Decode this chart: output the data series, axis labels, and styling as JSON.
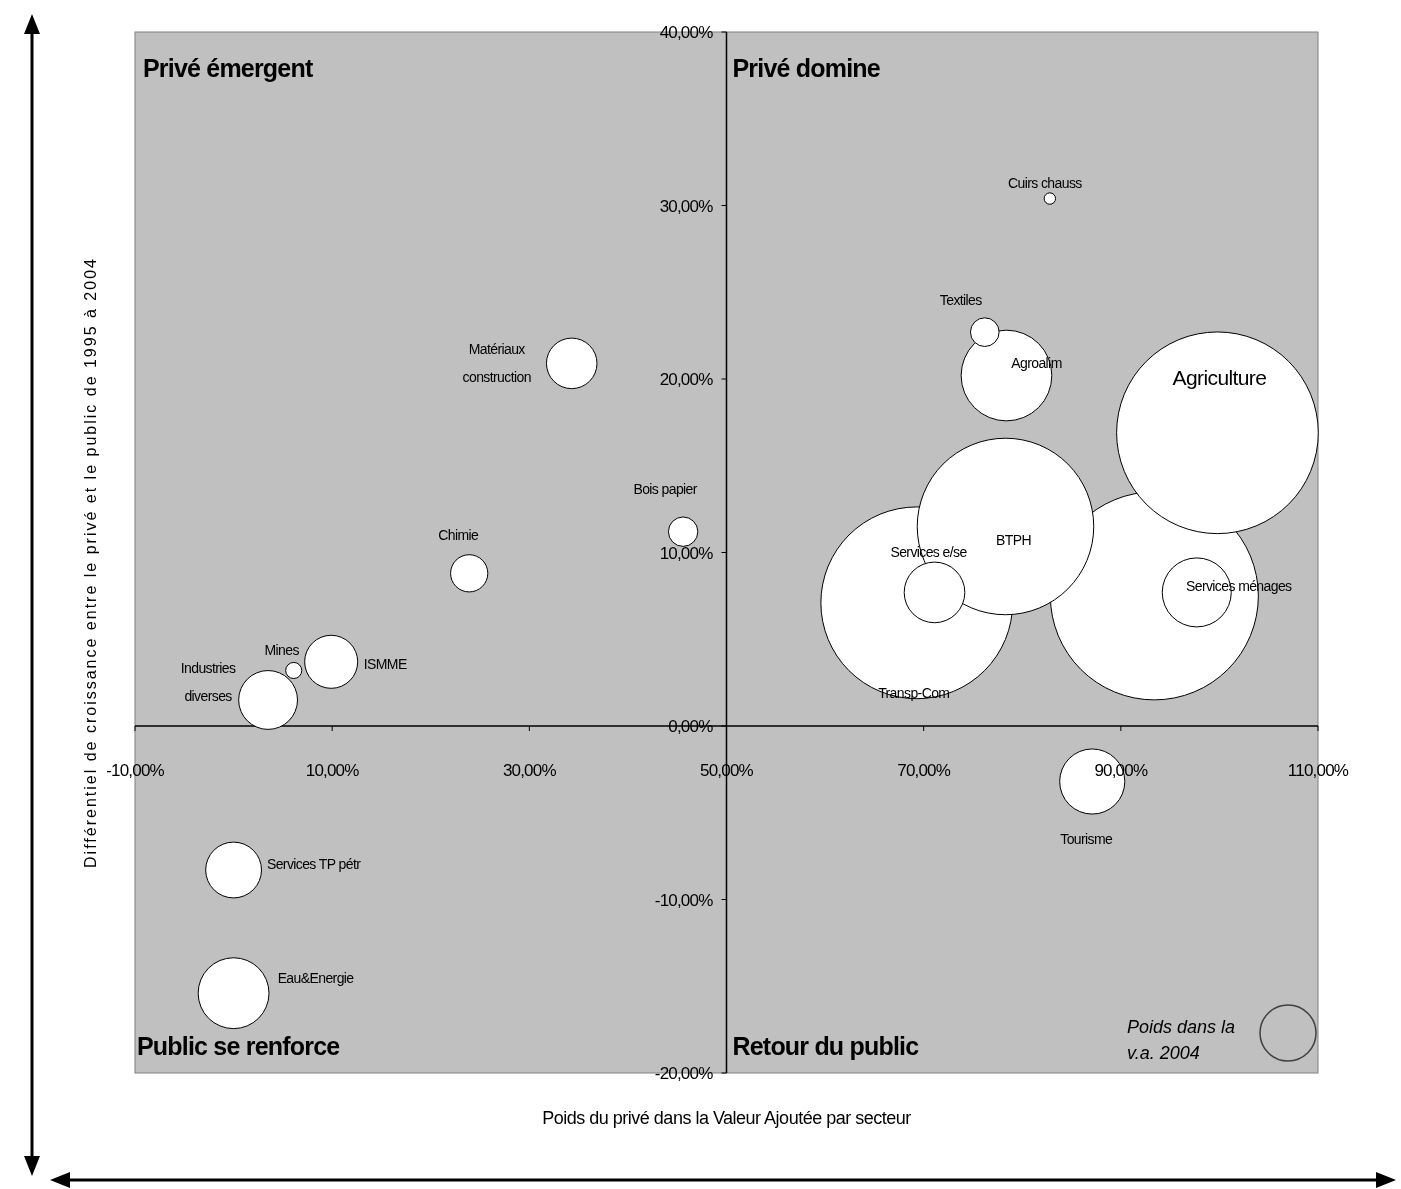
{
  "chart_data": {
    "type": "bubble",
    "xlabel": "Poids du privé dans la Valeur Ajoutée par secteur",
    "ylabel": "Différentiel de croissance entre le privé et le public de 1995 à 2004",
    "series": [
      {
        "name": "Cuirs chauss",
        "color": "#ffffff",
        "x": [
          82.8
        ],
        "values": [
          30.4
        ],
        "sizes": [
          0.003
        ]
      },
      {
        "name": "Textiles",
        "color": "#ffffff",
        "x": [
          76.2
        ],
        "values": [
          22.7
        ],
        "sizes": [
          0.019
        ]
      },
      {
        "name": "Agroalim",
        "color": "#ffffff",
        "x": [
          78.4
        ],
        "values": [
          20.2
        ],
        "sizes": [
          0.19
        ]
      },
      {
        "name": "Agriculture",
        "color": "#ffffff",
        "x": [
          99.8
        ],
        "values": [
          16.9
        ],
        "sizes": [
          0.94
        ]
      },
      {
        "name": "BTPH",
        "color": "#ffffff",
        "x": [
          78.3
        ],
        "values": [
          11.5
        ],
        "sizes": [
          0.72
        ]
      },
      {
        "name": "Transp-Com",
        "color": "#ffffff",
        "x": [
          69.3
        ],
        "values": [
          7.1
        ],
        "sizes": [
          0.85
        ]
      },
      {
        "name": "Services e/se",
        "color": "#ffffff",
        "x": [
          71.1
        ],
        "values": [
          7.7
        ],
        "sizes": [
          0.085
        ]
      },
      {
        "color": "#ffffff",
        "x": [
          93.4
        ],
        "values": [
          7.5
        ],
        "sizes": [
          1
        ]
      },
      {
        "name": "Services ménages",
        "color": "#ffffff",
        "x": [
          97.7
        ],
        "values": [
          7.7
        ],
        "sizes": [
          0.11
        ]
      },
      {
        "name": "Tourisme",
        "color": "#ffffff",
        "x": [
          87.1
        ],
        "values": [
          -3.2
        ],
        "sizes": [
          0.098
        ]
      },
      {
        "name": "Bois papier",
        "color": "#ffffff",
        "x": [
          45.6
        ],
        "values": [
          11.2
        ],
        "sizes": [
          0.02
        ]
      },
      {
        "name": "Matériaux\nconstruction",
        "color": "#ffffff",
        "x": [
          34.3
        ],
        "values": [
          20.9
        ],
        "sizes": [
          0.059
        ]
      },
      {
        "name": "Chimie",
        "color": "#ffffff",
        "x": [
          23.9
        ],
        "values": [
          8.8
        ],
        "sizes": [
          0.032
        ]
      },
      {
        "name": "Mines",
        "color": "#ffffff",
        "x": [
          6.1
        ],
        "values": [
          3.2
        ],
        "sizes": [
          0.006
        ]
      },
      {
        "name": "ISMME",
        "color": "#ffffff",
        "x": [
          9.9
        ],
        "values": [
          3.7
        ],
        "sizes": [
          0.065
        ]
      },
      {
        "name": "Industries\ndiverses",
        "color": "#ffffff",
        "x": [
          3.5
        ],
        "values": [
          1.5
        ],
        "sizes": [
          0.08
        ]
      },
      {
        "name": "Services TP pétr",
        "color": "#ffffff",
        "x": [
          0
        ],
        "values": [
          -8.3
        ],
        "sizes": [
          0.072
        ]
      },
      {
        "name": "Eau&Energie",
        "color": "#ffffff",
        "x": [
          0
        ],
        "values": [
          -15.4
        ],
        "sizes": [
          0.116
        ]
      }
    ],
    "xlim": [
      -10,
      110
    ],
    "ylim": [
      -20,
      40
    ],
    "xticks": [
      {
        "value": -10,
        "label": "-10,00%"
      },
      {
        "value": 10,
        "label": "10,00%"
      },
      {
        "value": 30,
        "label": "30,00%"
      },
      {
        "value": 50,
        "label": "50,00%"
      },
      {
        "value": 70,
        "label": "70,00%"
      },
      {
        "value": 90,
        "label": "90,00%"
      },
      {
        "value": 110,
        "label": "110,00%"
      }
    ],
    "yticks": [
      {
        "value": -20,
        "label": "-20,00%"
      },
      {
        "value": -10,
        "label": "-10,00%"
      },
      {
        "value": 0,
        "label": "0,00%"
      },
      {
        "value": 10,
        "label": "10,00%"
      },
      {
        "value": 20,
        "label": "20,00%"
      },
      {
        "value": 30,
        "label": "30,00%"
      },
      {
        "value": 40,
        "label": "40,00%"
      }
    ],
    "annotations": [
      "Privé émergent",
      "Privé domine",
      "Public se renforce",
      "Retour du public",
      "Poids dans la\nv.a. 2004"
    ]
  }
}
